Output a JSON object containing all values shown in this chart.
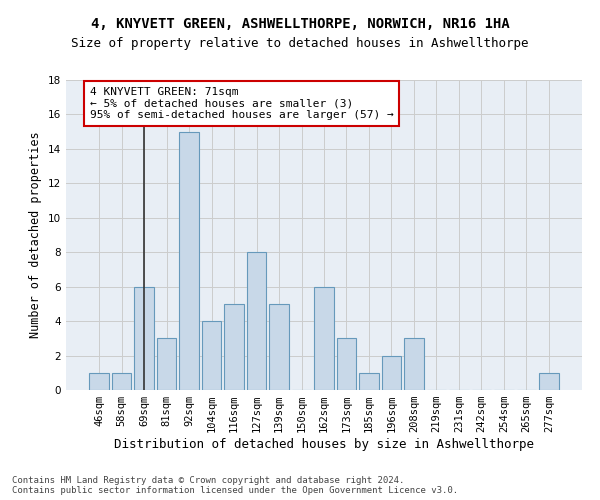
{
  "title1": "4, KNYVETT GREEN, ASHWELLTHORPE, NORWICH, NR16 1HA",
  "title2": "Size of property relative to detached houses in Ashwellthorpe",
  "xlabel": "Distribution of detached houses by size in Ashwellthorpe",
  "ylabel": "Number of detached properties",
  "bar_labels": [
    "46sqm",
    "58sqm",
    "69sqm",
    "81sqm",
    "92sqm",
    "104sqm",
    "116sqm",
    "127sqm",
    "139sqm",
    "150sqm",
    "162sqm",
    "173sqm",
    "185sqm",
    "196sqm",
    "208sqm",
    "219sqm",
    "231sqm",
    "242sqm",
    "254sqm",
    "265sqm",
    "277sqm"
  ],
  "bar_values": [
    1,
    1,
    6,
    3,
    15,
    4,
    5,
    8,
    5,
    0,
    6,
    3,
    1,
    2,
    3,
    0,
    0,
    0,
    0,
    0,
    1
  ],
  "bar_color": "#c8d8e8",
  "bar_edge_color": "#6699bb",
  "highlight_index": 2,
  "highlight_line_color": "#333333",
  "annotation_line1": "4 KNYVETT GREEN: 71sqm",
  "annotation_line2": "← 5% of detached houses are smaller (3)",
  "annotation_line3": "95% of semi-detached houses are larger (57) →",
  "annotation_box_color": "#ffffff",
  "annotation_box_edge_color": "#cc0000",
  "ylim": [
    0,
    18
  ],
  "yticks": [
    0,
    2,
    4,
    6,
    8,
    10,
    12,
    14,
    16,
    18
  ],
  "grid_color": "#cccccc",
  "background_color": "#e8eef5",
  "footer_text": "Contains HM Land Registry data © Crown copyright and database right 2024.\nContains public sector information licensed under the Open Government Licence v3.0.",
  "title1_fontsize": 10,
  "title2_fontsize": 9,
  "xlabel_fontsize": 9,
  "ylabel_fontsize": 8.5,
  "tick_fontsize": 7.5,
  "annotation_fontsize": 8,
  "footer_fontsize": 6.5
}
